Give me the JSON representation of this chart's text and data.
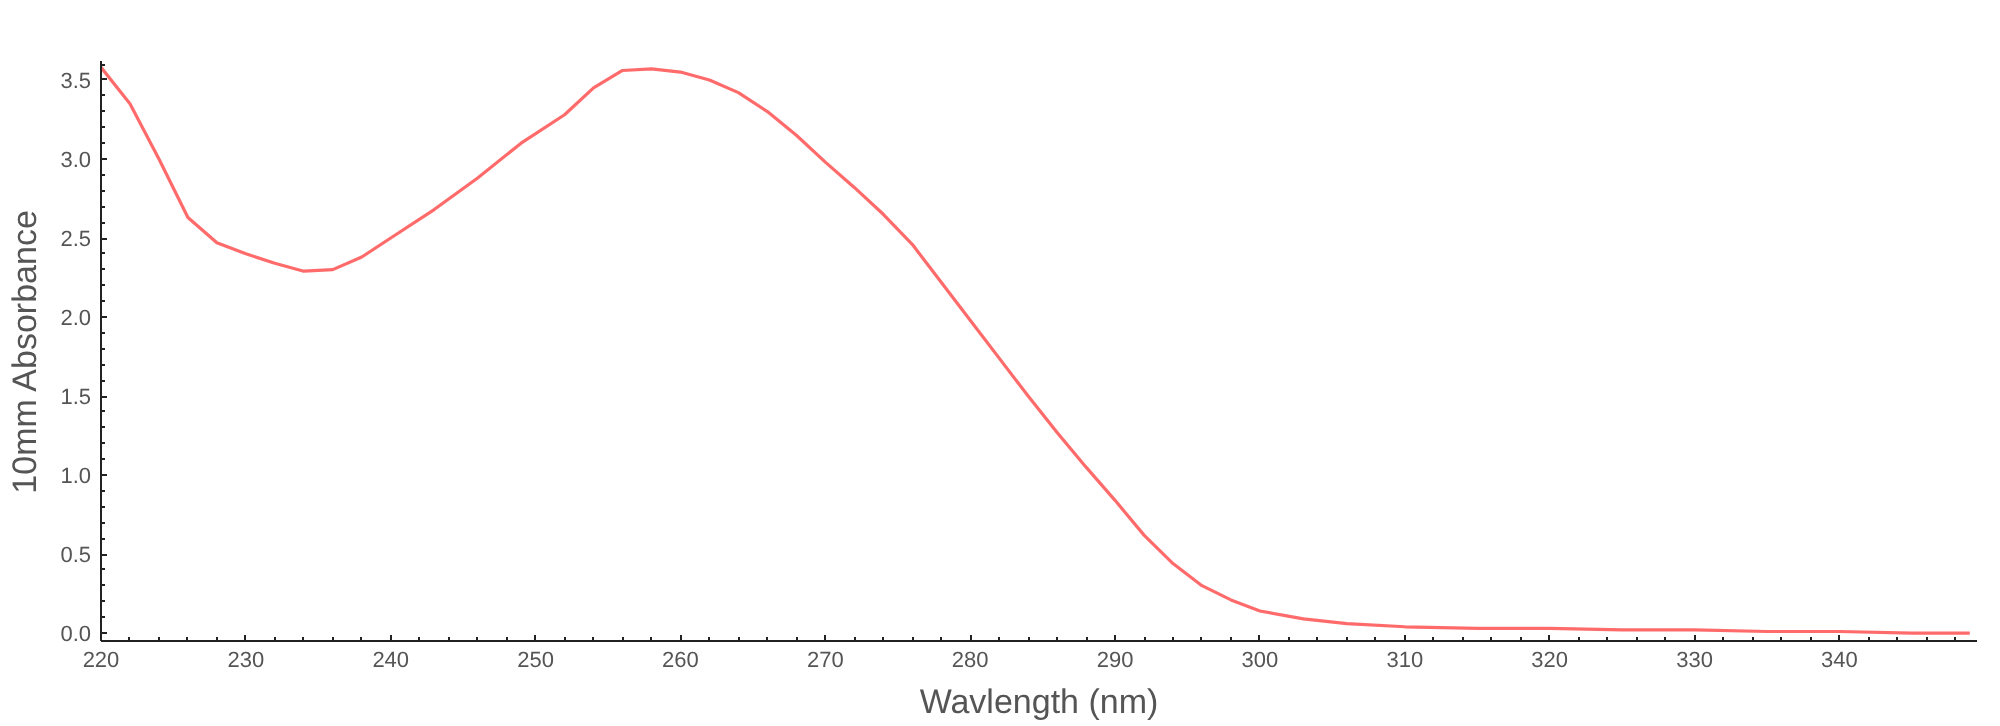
{
  "chart_data": {
    "type": "line",
    "xlabel": "Wavlength (nm)",
    "ylabel": "10mm Absorbance",
    "xlim": [
      220,
      349.5
    ],
    "ylim": [
      -0.05,
      3.62
    ],
    "xticks": [
      220,
      230,
      240,
      250,
      260,
      270,
      280,
      290,
      300,
      310,
      320,
      330,
      340
    ],
    "yticks": [
      {
        "value": 0,
        "label": "0.0"
      },
      0.5,
      {
        "value": 1,
        "label": "1.0"
      },
      1.5,
      {
        "value": 2,
        "label": "2.0"
      },
      2.5,
      {
        "value": 3,
        "label": "3.0"
      },
      3.5
    ],
    "grid": false,
    "marker": "none",
    "line_style": "solid",
    "series": [
      {
        "color": "#ff6b6b",
        "x": [
          220,
          222,
          224,
          226,
          228,
          230,
          232,
          234,
          236,
          238,
          240,
          243,
          246,
          249,
          252,
          254,
          256,
          258,
          260,
          262,
          264,
          266,
          268,
          270,
          272,
          274,
          276,
          278,
          280,
          282,
          284,
          286,
          288,
          290,
          292,
          294,
          296,
          298,
          300,
          303,
          306,
          310,
          315,
          320,
          325,
          330,
          335,
          340,
          345,
          349
        ],
        "values": [
          3.58,
          3.35,
          3.0,
          2.63,
          2.47,
          2.4,
          2.34,
          2.29,
          2.3,
          2.38,
          2.5,
          2.68,
          2.88,
          3.1,
          3.28,
          3.45,
          3.56,
          3.57,
          3.55,
          3.5,
          3.42,
          3.3,
          3.15,
          2.98,
          2.82,
          2.65,
          2.46,
          2.22,
          1.98,
          1.74,
          1.5,
          1.27,
          1.05,
          0.84,
          0.62,
          0.44,
          0.3,
          0.21,
          0.14,
          0.09,
          0.06,
          0.04,
          0.03,
          0.03,
          0.02,
          0.02,
          0.01,
          0.01,
          0,
          0
        ]
      }
    ]
  }
}
